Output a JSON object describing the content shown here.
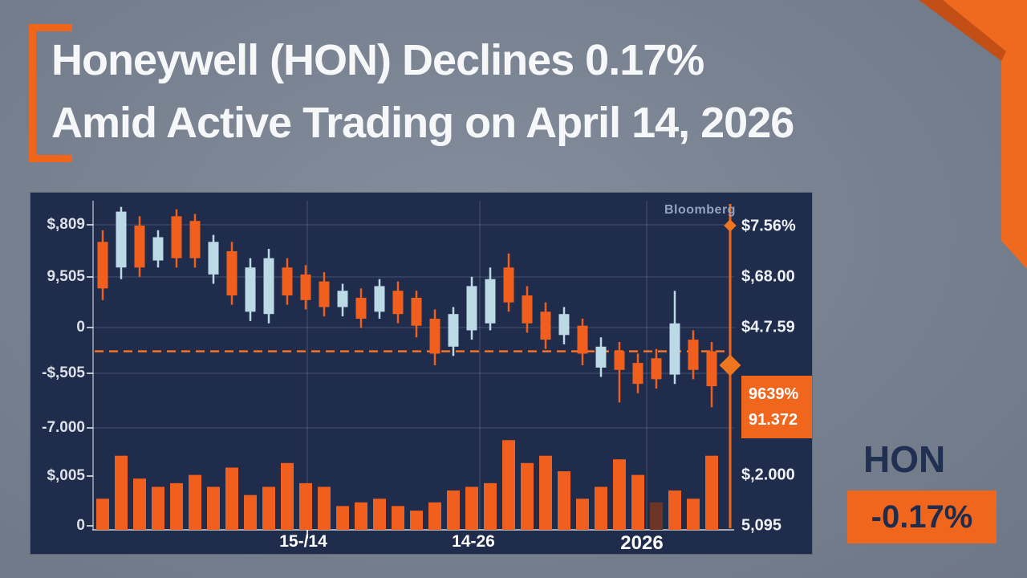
{
  "header": {
    "headline_line1": "Honeywell (HON) Declines 0.17%",
    "headline_line2": "Amid Active Trading on April 14, 2026"
  },
  "brand": {
    "watermark": "Bloomberg"
  },
  "summary": {
    "ticker": "HON",
    "change": "-0.17%"
  },
  "colors": {
    "background": "#7d8795",
    "panel_navy": "#1f2c4c",
    "accent_orange": "#f0661c",
    "candle_up": "#bcd9e6",
    "candle_down": "#f05f1d",
    "dark_navy_text": "#203050",
    "headline_text": "#f6f7f9"
  },
  "chart_data": {
    "type": "candlestick",
    "title": "HON intraday price with volume",
    "legend_position": "none",
    "grid": true,
    "value_range": [
      0,
      100
    ],
    "left_axis_labels": [
      "$,809",
      "9,505",
      "0",
      "-$,505",
      "-7.000",
      "$,005",
      "0"
    ],
    "right_axis_labels": [
      "$7.56%",
      "$,68.00",
      "$4.7.59"
    ],
    "right_axis_labels_lower": [
      "$,2.000",
      "5,095"
    ],
    "price_badge": {
      "line1": "9639%",
      "line2": "91.372"
    },
    "x_labels": [
      "15-/14",
      "14-26",
      "2026"
    ],
    "dashed_reference_level": 36,
    "candle_format": [
      "open",
      "high",
      "low",
      "close",
      "direction(u=up/blue,d=down/orange)"
    ],
    "candles": [
      [
        83,
        88,
        58,
        63,
        "d"
      ],
      [
        72,
        98,
        67,
        96,
        "u"
      ],
      [
        90,
        94,
        68,
        72,
        "d"
      ],
      [
        75,
        88,
        72,
        85,
        "u"
      ],
      [
        94,
        97,
        72,
        76,
        "d"
      ],
      [
        92,
        95,
        72,
        76,
        "d"
      ],
      [
        69,
        86,
        65,
        83,
        "u"
      ],
      [
        79,
        83,
        56,
        60,
        "d"
      ],
      [
        53,
        76,
        49,
        72,
        "u"
      ],
      [
        52,
        80,
        48,
        76,
        "u"
      ],
      [
        72,
        76,
        56,
        60,
        "d"
      ],
      [
        69,
        73,
        54,
        58,
        "d"
      ],
      [
        66,
        70,
        51,
        55,
        "d"
      ],
      [
        55,
        65,
        51,
        62,
        "u"
      ],
      [
        59,
        63,
        46,
        50,
        "d"
      ],
      [
        53,
        67,
        50,
        64,
        "u"
      ],
      [
        62,
        66,
        48,
        52,
        "d"
      ],
      [
        59,
        62,
        42,
        47,
        "d"
      ],
      [
        50,
        54,
        30,
        35,
        "d"
      ],
      [
        38,
        55,
        34,
        52,
        "u"
      ],
      [
        45,
        68,
        41,
        64,
        "u"
      ],
      [
        48,
        72,
        45,
        67,
        "u"
      ],
      [
        72,
        78,
        53,
        57,
        "d"
      ],
      [
        60,
        64,
        44,
        48,
        "d"
      ],
      [
        53,
        57,
        37,
        41,
        "d"
      ],
      [
        43,
        55,
        39,
        52,
        "u"
      ],
      [
        47,
        50,
        30,
        35,
        "d"
      ],
      [
        29,
        42,
        25,
        38,
        "u"
      ],
      [
        36,
        40,
        14,
        28,
        "d"
      ],
      [
        31,
        35,
        18,
        22,
        "d"
      ],
      [
        33,
        37,
        20,
        24,
        "d"
      ],
      [
        26,
        62,
        22,
        48,
        "u"
      ],
      [
        41,
        45,
        24,
        28,
        "d"
      ],
      [
        36,
        40,
        12,
        21,
        "d"
      ]
    ],
    "volumes": [
      34,
      81,
      56,
      47,
      51,
      60,
      47,
      68,
      38,
      47,
      73,
      51,
      47,
      26,
      30,
      34,
      26,
      21,
      30,
      43,
      47,
      51,
      98,
      73,
      81,
      64,
      34,
      47,
      77,
      60,
      30,
      43,
      34,
      81
    ],
    "dark_volume_indices": [
      30
    ],
    "markers": [
      {
        "shape": "diamond",
        "level": 90,
        "size": 11
      },
      {
        "shape": "diamond",
        "level": 30,
        "size": 19
      }
    ]
  }
}
